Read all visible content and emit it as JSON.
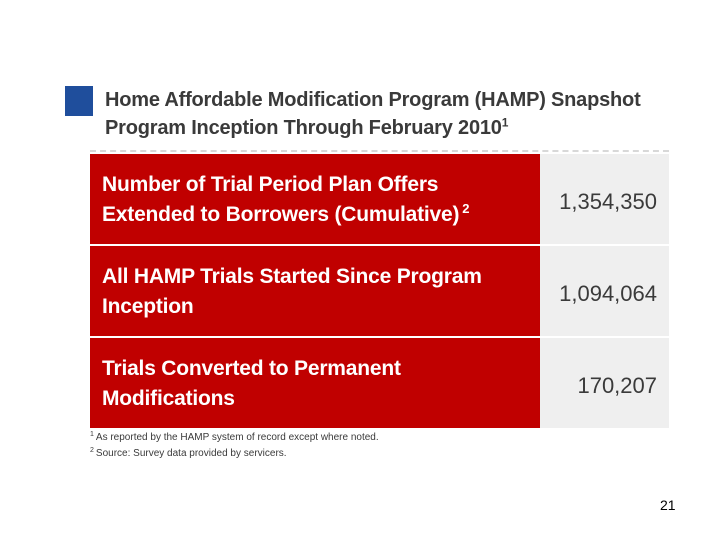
{
  "slide": {
    "title_line1": "Home Affordable Modification Program (HAMP) Snapshot",
    "title_line2": "Program Inception Through February 2010",
    "title_footnote_ref": "1",
    "accent_color": "#1f4e9c",
    "header_color": "#c00000"
  },
  "table": {
    "rows": [
      {
        "label_line1": "Number of Trial Period Plan Offers",
        "label_line2": "Extended to Borrowers (Cumulative)",
        "footnote_ref": "2",
        "value": "1,354,350"
      },
      {
        "label_line1": "All HAMP Trials Started Since Program",
        "label_line2": "Inception",
        "footnote_ref": "",
        "value": "1,094,064"
      },
      {
        "label_line1": "Trials Converted to Permanent",
        "label_line2": "Modifications",
        "footnote_ref": "",
        "value": "170,207"
      }
    ]
  },
  "footnotes": [
    {
      "ref": "1",
      "text": "As reported by the HAMP system of record except where noted."
    },
    {
      "ref": "2",
      "text": "Source: Survey data provided by servicers."
    }
  ],
  "page_number": "21"
}
